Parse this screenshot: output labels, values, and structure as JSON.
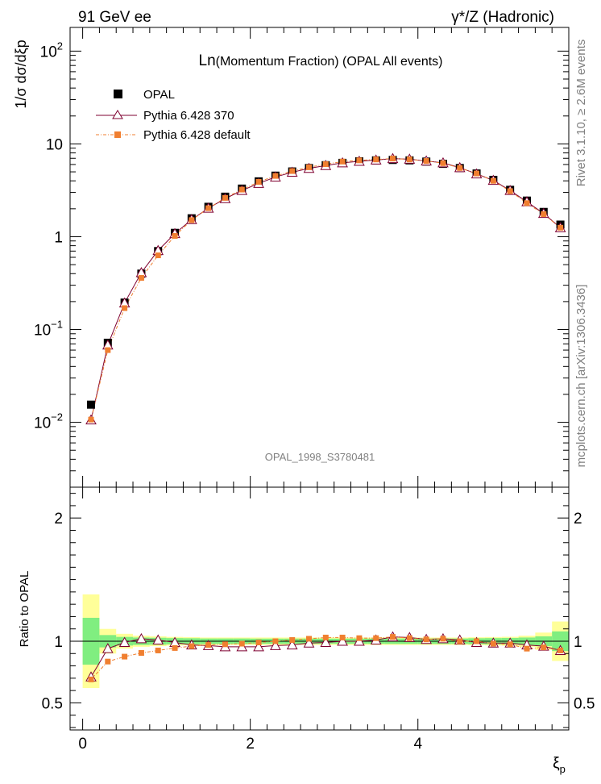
{
  "header": {
    "left": "91 GeV ee",
    "right": "γ*/Z (Hadronic)"
  },
  "side_labels": {
    "rivet": "Rivet 3.1.10, ≥ 2.6M events",
    "mcplots": "mcplots.cern.ch [arXiv:1306.3436]"
  },
  "chart_data": [
    {
      "type": "scatter",
      "panel": "main",
      "title_prefix": "Ln",
      "title": "(Momentum Fraction) (OPAL All events)",
      "ylabel": "1/σ dσ/dξp",
      "yscale": "log",
      "ylim": [
        0.002,
        180
      ],
      "xlim": [
        -0.15,
        5.8
      ],
      "watermark": "OPAL_1998_S3780481",
      "yticks": [
        {
          "value": 0.01,
          "base": "10",
          "exp": "−2"
        },
        {
          "value": 0.1,
          "base": "10",
          "exp": "−1"
        },
        {
          "value": 1,
          "base": "1",
          "exp": ""
        },
        {
          "value": 10,
          "base": "10",
          "exp": ""
        },
        {
          "value": 100,
          "base": "10",
          "exp": "2"
        }
      ],
      "x": [
        0.1,
        0.3,
        0.5,
        0.7,
        0.9,
        1.1,
        1.3,
        1.5,
        1.7,
        1.9,
        2.1,
        2.3,
        2.5,
        2.7,
        2.9,
        3.1,
        3.3,
        3.5,
        3.7,
        3.9,
        4.1,
        4.3,
        4.5,
        4.7,
        4.9,
        5.1,
        5.3,
        5.5,
        5.7
      ],
      "series": [
        {
          "name": "OPAL",
          "style": "data",
          "color": "#000000",
          "values": [
            0.0155,
            0.072,
            0.195,
            0.4,
            0.7,
            1.1,
            1.58,
            2.1,
            2.7,
            3.3,
            3.95,
            4.55,
            5.05,
            5.5,
            5.9,
            6.25,
            6.5,
            6.65,
            6.72,
            6.65,
            6.45,
            6.1,
            5.5,
            4.8,
            4.1,
            3.2,
            2.45,
            1.85,
            1.35
          ]
        },
        {
          "name": "Pythia 6.428 370",
          "style": "triangle",
          "color": "#7f0030",
          "values": [
            0.0106,
            0.068,
            0.193,
            0.41,
            0.71,
            1.08,
            1.53,
            2.03,
            2.57,
            3.15,
            3.75,
            4.4,
            4.95,
            5.45,
            5.85,
            6.25,
            6.5,
            6.7,
            6.95,
            6.85,
            6.55,
            6.25,
            5.55,
            4.75,
            4.05,
            3.15,
            2.38,
            1.78,
            1.25
          ]
        },
        {
          "name": "Pythia 6.428 default",
          "style": "square",
          "color": "#f07f30",
          "values": [
            0.0107,
            0.06,
            0.17,
            0.36,
            0.63,
            1.02,
            1.51,
            2.03,
            2.62,
            3.22,
            3.9,
            4.52,
            5.1,
            5.6,
            6.05,
            6.45,
            6.65,
            6.8,
            6.95,
            6.8,
            6.55,
            6.2,
            5.5,
            4.8,
            4.0,
            3.1,
            2.3,
            1.75,
            1.25
          ]
        }
      ]
    },
    {
      "type": "scatter",
      "panel": "ratio",
      "ylabel": "Ratio to OPAL",
      "xlabel": "ξp",
      "ylim": [
        0.28,
        2.25
      ],
      "xlim": [
        -0.15,
        5.8
      ],
      "xticks": [
        0,
        2,
        4
      ],
      "yticks": [
        0.5,
        1,
        2
      ],
      "x": [
        0.1,
        0.3,
        0.5,
        0.7,
        0.9,
        1.1,
        1.3,
        1.5,
        1.7,
        1.9,
        2.1,
        2.3,
        2.5,
        2.7,
        2.9,
        3.1,
        3.3,
        3.5,
        3.7,
        3.9,
        4.1,
        4.3,
        4.5,
        4.7,
        4.9,
        5.1,
        5.3,
        5.5,
        5.7
      ],
      "band_stat": [
        0.19,
        0.05,
        0.035,
        0.03,
        0.028,
        0.025,
        0.024,
        0.022,
        0.022,
        0.022,
        0.021,
        0.021,
        0.021,
        0.021,
        0.021,
        0.021,
        0.021,
        0.021,
        0.022,
        0.022,
        0.022,
        0.022,
        0.022,
        0.024,
        0.025,
        0.026,
        0.03,
        0.04,
        0.08
      ],
      "band_total": [
        0.38,
        0.1,
        0.06,
        0.045,
        0.04,
        0.035,
        0.033,
        0.03,
        0.03,
        0.03,
        0.03,
        0.03,
        0.03,
        0.03,
        0.03,
        0.03,
        0.03,
        0.03,
        0.03,
        0.03,
        0.03,
        0.03,
        0.03,
        0.032,
        0.034,
        0.036,
        0.045,
        0.07,
        0.16
      ],
      "series": [
        {
          "name": "Pythia 6.428 370",
          "style": "triangle",
          "color": "#7f0030",
          "values": [
            0.71,
            0.94,
            0.99,
            1.02,
            1.01,
            0.99,
            0.97,
            0.965,
            0.955,
            0.955,
            0.955,
            0.965,
            0.97,
            0.985,
            0.99,
            1.0,
            1.0,
            1.01,
            1.035,
            1.03,
            1.015,
            1.02,
            1.01,
            0.99,
            0.985,
            0.985,
            0.97,
            0.96,
            0.925
          ]
        },
        {
          "name": "Pythia 6.428 default",
          "style": "square",
          "color": "#f07f30",
          "values": [
            0.69,
            0.835,
            0.875,
            0.905,
            0.925,
            0.945,
            0.96,
            0.97,
            0.975,
            0.98,
            0.99,
            1.0,
            1.01,
            1.02,
            1.03,
            1.03,
            1.025,
            1.025,
            1.035,
            1.025,
            1.015,
            1.02,
            1.0,
            1.0,
            0.98,
            0.975,
            0.94,
            0.95,
            0.925
          ]
        }
      ]
    }
  ]
}
